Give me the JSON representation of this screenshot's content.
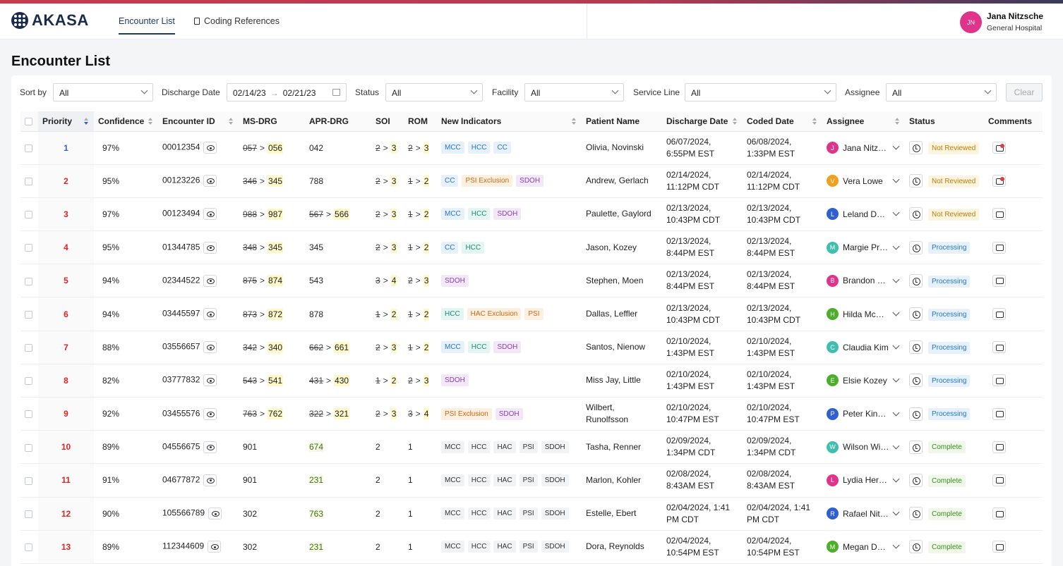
{
  "app": {
    "brand": "AKASA"
  },
  "nav": {
    "tabs": [
      {
        "label": "Encounter List"
      },
      {
        "label": "Coding References"
      }
    ]
  },
  "user": {
    "initials": "JN",
    "name": "Jana Nitzsche",
    "org": "General Hospital"
  },
  "page": {
    "title": "Encounter List"
  },
  "filters": {
    "sort_by": {
      "label": "Sort by",
      "value": "All"
    },
    "discharge_date": {
      "label": "Discharge Date",
      "from": "02/14/23",
      "to": "02/21/23"
    },
    "status": {
      "label": "Status",
      "value": "All"
    },
    "facility": {
      "label": "Facility",
      "value": "All"
    },
    "service_line": {
      "label": "Service Line",
      "value": "All"
    },
    "assignee": {
      "label": "Assignee",
      "value": "All"
    },
    "clear_label": "Clear"
  },
  "columns": [
    "Priority",
    "Confidence",
    "Encounter ID",
    "MS-DRG",
    "APR-DRG",
    "SOI",
    "ROM",
    "New Indicators",
    "Patient Name",
    "Discharge Date",
    "Coded Date",
    "Assignee",
    "Status",
    "Comments"
  ],
  "colors": {
    "accent": "#1d3b6e",
    "priority_red": "#e02424",
    "priority_blue": "#2f5fd0"
  },
  "rows": [
    {
      "priority": "1",
      "confidence": "97%",
      "encounter_id": "00012354",
      "ms_old": "057",
      "ms_new": "056",
      "apr_old": "",
      "apr_new": "042",
      "soi_old": "2",
      "soi_new": "3",
      "rom_old": "2",
      "rom_new": "3",
      "indicators": [
        {
          "t": "MCC",
          "c": "blue"
        },
        {
          "t": "HCC",
          "c": "blue"
        },
        {
          "t": "CC",
          "c": "blue"
        }
      ],
      "patient": "Olivia, Novinski",
      "discharge_l1": "06/07/2024,",
      "discharge_l2": "6:55PM EST",
      "coded_l1": "06/08/2024,",
      "coded_l2": "1:33PM EST",
      "assignee_initial": "J",
      "assignee_color": "#e0338b",
      "assignee": "Jana Nitzsche",
      "status": "Not Reviewed",
      "status_kind": "nr",
      "comment_dot": true
    },
    {
      "priority": "2",
      "confidence": "95%",
      "encounter_id": "00123226",
      "ms_old": "346",
      "ms_new": "345",
      "apr_old": "",
      "apr_new": "788",
      "soi_old": "2",
      "soi_new": "3",
      "rom_old": "1",
      "rom_new": "2",
      "indicators": [
        {
          "t": "CC",
          "c": "blue"
        },
        {
          "t": "PSI Exclusion",
          "c": "orange"
        },
        {
          "t": "SDOH",
          "c": "purple"
        }
      ],
      "patient": "Andrew, Gerlach",
      "discharge_l1": "02/14/2024,",
      "discharge_l2": "11:12PM CDT",
      "coded_l1": "02/14/2024,",
      "coded_l2": "11:12PM CDT",
      "assignee_initial": "V",
      "assignee_color": "#f0a020",
      "assignee": "Vera Lowe",
      "status": "Not Reviewed",
      "status_kind": "nr",
      "comment_dot": true
    },
    {
      "priority": "3",
      "confidence": "97%",
      "encounter_id": "00123494",
      "ms_old": "988",
      "ms_new": "987",
      "apr_old": "567",
      "apr_new": "566",
      "soi_old": "2",
      "soi_new": "3",
      "rom_old": "1",
      "rom_new": "2",
      "indicators": [
        {
          "t": "MCC",
          "c": "blue"
        },
        {
          "t": "HCC",
          "c": "teal"
        },
        {
          "t": "SDOH",
          "c": "purple"
        }
      ],
      "patient": "Paulette, Gaylord",
      "discharge_l1": "02/13/2024,",
      "discharge_l2": "10:43PM CDT",
      "coded_l1": "02/13/2024,",
      "coded_l2": "10:43PM CDT",
      "assignee_initial": "L",
      "assignee_color": "#2f5fd0",
      "assignee": "Leland Davis",
      "status": "Not Reviewed",
      "status_kind": "nr",
      "comment_dot": false
    },
    {
      "priority": "4",
      "confidence": "95%",
      "encounter_id": "01344785",
      "ms_old": "348",
      "ms_new": "345",
      "apr_old": "",
      "apr_new": "345",
      "soi_old": "2",
      "soi_new": "3",
      "rom_old": "1",
      "rom_new": "2",
      "indicators": [
        {
          "t": "CC",
          "c": "blue"
        },
        {
          "t": "HCC",
          "c": "teal"
        }
      ],
      "patient": "Jason, Kozey",
      "discharge_l1": "02/13/2024,",
      "discharge_l2": "8:44PM EST",
      "coded_l1": "02/13/2024,",
      "coded_l2": "8:44PM EST",
      "assignee_initial": "M",
      "assignee_color": "#3fbfb0",
      "assignee": "Margie Price",
      "status": "Processing",
      "status_kind": "pr",
      "comment_dot": false
    },
    {
      "priority": "5",
      "confidence": "94%",
      "encounter_id": "02344522",
      "ms_old": "875",
      "ms_new": "874",
      "apr_old": "",
      "apr_new": "543",
      "soi_old": "3",
      "soi_new": "4",
      "rom_old": "2",
      "rom_new": "3",
      "indicators": [
        {
          "t": "SDOH",
          "c": "purple"
        }
      ],
      "patient": "Stephen, Moen",
      "discharge_l1": "02/13/2024,",
      "discharge_l2": "8:44PM EST",
      "coded_l1": "02/13/2024,",
      "coded_l2": "8:44PM EST",
      "assignee_initial": "B",
      "assignee_color": "#e0338b",
      "assignee": "Brandon Lee",
      "status": "Processing",
      "status_kind": "pr",
      "comment_dot": false
    },
    {
      "priority": "6",
      "confidence": "94%",
      "encounter_id": "03445597",
      "ms_old": "873",
      "ms_new": "872",
      "apr_old": "",
      "apr_new": "878",
      "soi_old": "1",
      "soi_new": "2",
      "rom_old": "1",
      "rom_new": "2",
      "indicators": [
        {
          "t": "HCC",
          "c": "teal"
        },
        {
          "t": "HAC Exclusion",
          "c": "orange"
        },
        {
          "t": "PSI",
          "c": "orange"
        }
      ],
      "patient": "Dallas, Leffler",
      "discharge_l1": "02/13/2024,",
      "discharge_l2": "10:43PM CDT",
      "coded_l1": "02/13/2024,",
      "coded_l2": "10:43PM CDT",
      "assignee_initial": "H",
      "assignee_color": "#4cae2a",
      "assignee": "Hilda McCoy",
      "status": "Processing",
      "status_kind": "pr",
      "comment_dot": false
    },
    {
      "priority": "7",
      "confidence": "88%",
      "encounter_id": "03556657",
      "ms_old": "342",
      "ms_new": "340",
      "apr_old": "662",
      "apr_new": "661",
      "soi_old": "2",
      "soi_new": "3",
      "rom_old": "1",
      "rom_new": "2",
      "indicators": [
        {
          "t": "MCC",
          "c": "blue"
        },
        {
          "t": "HCC",
          "c": "teal"
        },
        {
          "t": "SDOH",
          "c": "purple"
        }
      ],
      "patient": "Santos, Nienow",
      "discharge_l1": "02/10/2024,",
      "discharge_l2": "1:43PM EST",
      "coded_l1": "02/10/2024,",
      "coded_l2": "1:43PM EST",
      "assignee_initial": "C",
      "assignee_color": "#3fbfb0",
      "assignee": "Claudia Kim",
      "status": "Processing",
      "status_kind": "pr",
      "comment_dot": false
    },
    {
      "priority": "8",
      "confidence": "82%",
      "encounter_id": "03777832",
      "ms_old": "543",
      "ms_new": "541",
      "apr_old": "431",
      "apr_new": "430",
      "soi_old": "1",
      "soi_new": "2",
      "rom_old": "2",
      "rom_new": "3",
      "indicators": [
        {
          "t": "SDOH",
          "c": "purple"
        }
      ],
      "patient": "Miss Jay, Little",
      "discharge_l1": "02/10/2024,",
      "discharge_l2": "1:43PM EST",
      "coded_l1": "02/10/2024,",
      "coded_l2": "1:43PM EST",
      "assignee_initial": "E",
      "assignee_color": "#4cae2a",
      "assignee": "Elsie Kozey",
      "status": "Processing",
      "status_kind": "pr",
      "comment_dot": false
    },
    {
      "priority": "9",
      "confidence": "92%",
      "encounter_id": "03455576",
      "ms_old": "763",
      "ms_new": "762",
      "apr_old": "322",
      "apr_new": "321",
      "soi_old": "2",
      "soi_new": "3",
      "rom_old": "3",
      "rom_new": "4",
      "indicators": [
        {
          "t": "PSI Exclusion",
          "c": "orange"
        },
        {
          "t": "SDOH",
          "c": "purple"
        }
      ],
      "patient": "Wilbert, Runolfsson",
      "discharge_l1": "02/10/2024,",
      "discharge_l2": "10:47PM EST",
      "coded_l1": "02/10/2024,",
      "coded_l2": "10:47PM EST",
      "assignee_initial": "P",
      "assignee_color": "#2f5fd0",
      "assignee": "Peter Kinney",
      "status": "Processing",
      "status_kind": "pr",
      "comment_dot": false
    },
    {
      "priority": "10",
      "confidence": "89%",
      "encounter_id": "04556675",
      "ms_old": "",
      "ms_new": "901",
      "ms_plain": true,
      "apr_old": "",
      "apr_new": "674",
      "apr_hl": true,
      "soi_old": "",
      "soi_new": "2",
      "rom_old": "",
      "rom_new": "1",
      "indicators": [
        {
          "t": "MCC",
          "c": "gray"
        },
        {
          "t": "HCC",
          "c": "gray"
        },
        {
          "t": "HAC",
          "c": "gray"
        },
        {
          "t": "PSI",
          "c": "gray"
        },
        {
          "t": "SDOH",
          "c": "gray"
        }
      ],
      "patient": "Tasha, Renner",
      "discharge_l1": "02/09/2024,",
      "discharge_l2": "1:34PM CDT",
      "coded_l1": "02/09/2024,",
      "coded_l2": "1:34PM CDT",
      "assignee_initial": "W",
      "assignee_color": "#3fbfb0",
      "assignee": "Wilson Wiley",
      "status": "Complete",
      "status_kind": "cp",
      "comment_dot": false
    },
    {
      "priority": "11",
      "confidence": "91%",
      "encounter_id": "04677872",
      "ms_old": "",
      "ms_new": "901",
      "ms_plain": true,
      "apr_old": "",
      "apr_new": "231",
      "apr_hl": true,
      "soi_old": "",
      "soi_new": "2",
      "rom_old": "",
      "rom_new": "1",
      "indicators": [
        {
          "t": "MCC",
          "c": "gray"
        },
        {
          "t": "HCC",
          "c": "gray"
        },
        {
          "t": "HAC",
          "c": "gray"
        },
        {
          "t": "PSI",
          "c": "gray"
        },
        {
          "t": "SDOH",
          "c": "gray"
        }
      ],
      "patient": "Marlon, Kohler",
      "discharge_l1": "02/08/2024,",
      "discharge_l2": "8:43AM EST",
      "coded_l1": "02/08/2024,",
      "coded_l2": "8:43AM EST",
      "assignee_initial": "L",
      "assignee_color": "#e0338b",
      "assignee": "Lydia Herman",
      "status": "Complete",
      "status_kind": "cp",
      "comment_dot": false
    },
    {
      "priority": "12",
      "confidence": "90%",
      "encounter_id": "105566789",
      "ms_old": "",
      "ms_new": "302",
      "ms_plain": true,
      "apr_old": "",
      "apr_new": "763",
      "apr_hl": true,
      "soi_old": "",
      "soi_new": "2",
      "rom_old": "",
      "rom_new": "1",
      "indicators": [
        {
          "t": "MCC",
          "c": "gray"
        },
        {
          "t": "HCC",
          "c": "gray"
        },
        {
          "t": "HAC",
          "c": "gray"
        },
        {
          "t": "PSI",
          "c": "gray"
        },
        {
          "t": "SDOH",
          "c": "gray"
        }
      ],
      "patient": "Estelle, Ebert",
      "discharge_l1": "02/04/2024, 1:41",
      "discharge_l2": "PM CDT",
      "coded_l1": "02/04/2024, 1:41",
      "coded_l2": "PM CDT",
      "assignee_initial": "R",
      "assignee_color": "#2f5fd0",
      "assignee": "Rafael Nitzsche",
      "status": "Complete",
      "status_kind": "cp",
      "comment_dot": false
    },
    {
      "priority": "13",
      "confidence": "89%",
      "encounter_id": "112344609",
      "ms_old": "",
      "ms_new": "302",
      "ms_plain": true,
      "apr_old": "",
      "apr_new": "231",
      "apr_hl": true,
      "soi_old": "",
      "soi_new": "2",
      "rom_old": "",
      "rom_new": "1",
      "indicators": [
        {
          "t": "MCC",
          "c": "gray"
        },
        {
          "t": "HCC",
          "c": "gray"
        },
        {
          "t": "HAC",
          "c": "gray"
        },
        {
          "t": "PSI",
          "c": "gray"
        },
        {
          "t": "SDOH",
          "c": "gray"
        }
      ],
      "patient": "Dora, Reynolds",
      "discharge_l1": "02/04/2024,",
      "discharge_l2": "10:54PM EST",
      "coded_l1": "02/04/2024,",
      "coded_l2": "10:54PM EST",
      "assignee_initial": "M",
      "assignee_color": "#4cae2a",
      "assignee": "Megan Dare",
      "status": "Complete",
      "status_kind": "cp",
      "comment_dot": false
    }
  ]
}
